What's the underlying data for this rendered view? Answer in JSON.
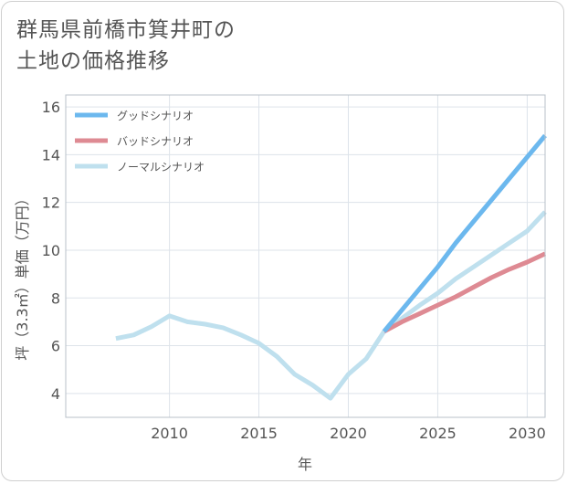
{
  "title_lines": [
    "群馬県前橋市箕井町の",
    "土地の価格推移"
  ],
  "chart_data": {
    "type": "line",
    "title": "群馬県前橋市箕井町の土地の価格推移",
    "xlabel": "年",
    "ylabel": "坪（3.3㎡）単価（万円）",
    "xlim": [
      2004.2,
      2031
    ],
    "ylim": [
      3,
      16.5
    ],
    "xticks": [
      2010,
      2015,
      2020,
      2025,
      2030
    ],
    "yticks": [
      4,
      6,
      8,
      10,
      12,
      14,
      16
    ],
    "grid": true,
    "legend_position": "top-left",
    "series": [
      {
        "name": "グッドシナリオ",
        "color": "#6cb8ee",
        "x": [
          2022,
          2023,
          2024,
          2025,
          2026,
          2027,
          2028,
          2029,
          2030,
          2031
        ],
        "y": [
          6.6,
          7.5,
          8.4,
          9.3,
          10.3,
          11.2,
          12.1,
          13.0,
          13.9,
          14.8
        ]
      },
      {
        "name": "バッドシナリオ",
        "color": "#de8a93",
        "x": [
          2022,
          2023,
          2024,
          2025,
          2026,
          2027,
          2028,
          2029,
          2030,
          2031
        ],
        "y": [
          6.6,
          7.0,
          7.35,
          7.7,
          8.05,
          8.45,
          8.85,
          9.2,
          9.5,
          9.85
        ]
      },
      {
        "name": "ノーマルシナリオ",
        "color": "#bfe0ee",
        "x": [
          2007,
          2008,
          2009,
          2010,
          2011,
          2012,
          2013,
          2014,
          2015,
          2016,
          2017,
          2018,
          2019,
          2020,
          2021,
          2022,
          2023,
          2024,
          2025,
          2026,
          2027,
          2028,
          2029,
          2030,
          2031
        ],
        "y": [
          6.3,
          6.45,
          6.8,
          7.25,
          7.0,
          6.9,
          6.75,
          6.45,
          6.1,
          5.55,
          4.8,
          4.35,
          3.8,
          4.8,
          5.45,
          6.6,
          7.15,
          7.7,
          8.2,
          8.8,
          9.3,
          9.8,
          10.3,
          10.8,
          11.6
        ]
      }
    ]
  }
}
